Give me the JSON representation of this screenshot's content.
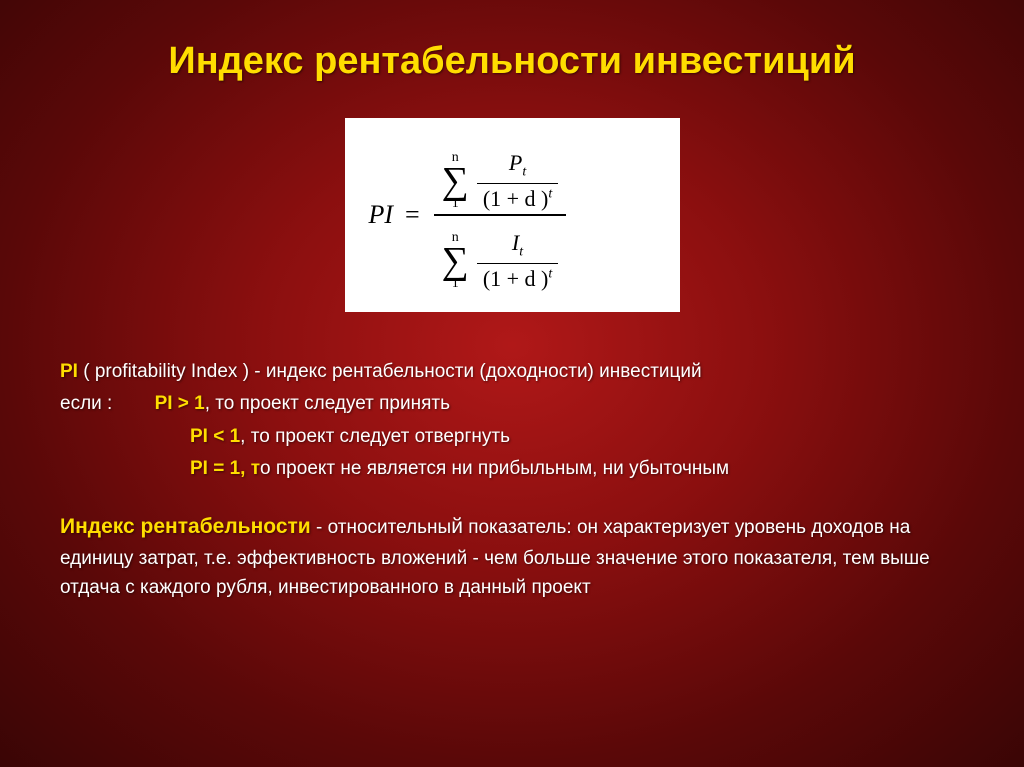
{
  "title": "Индекс рентабельности инвестиций",
  "formula": {
    "lhs": "PI",
    "eq": "=",
    "upper_sum_lower": "1",
    "upper_sum_upper": "n",
    "upper_num": "P",
    "upper_num_sub": "t",
    "upper_den_base": "(1 + d )",
    "upper_den_exp": "t",
    "lower_sum_lower": "1",
    "lower_sum_upper": "n",
    "lower_num": "I",
    "lower_num_sub": "t",
    "lower_den_base": "(1 + d )",
    "lower_den_exp": "t"
  },
  "definition": {
    "pi": "PI",
    "paren": " ( profitability Index ) - ",
    "rest": "индекс рентабельности (доходности) инвестиций"
  },
  "rules": {
    "if_label": "если :",
    "r1_cond": "PI > 1",
    "r1_text": ", то проект следует принять",
    "r2_cond": "PI < 1",
    "r2_text": ", то проект следует отвергнуть",
    "r3_cond": "PI = 1",
    "r3_prefix": ", т",
    "r3_text": "о проект не является ни прибыльным, ни убыточным"
  },
  "para": {
    "lead_bold": "Индекс рентабельности",
    "dash": " - ",
    "rel": "относительны",
    "rel_end": "й",
    "rel_after": " показатель: ",
    "rest": "он характеризует уровень доходов на единицу затрат, т.е. эффективность вложений - чем больше значение этого показателя, тем выше отдача с каждого рубля, инвестированного в данный проект"
  }
}
